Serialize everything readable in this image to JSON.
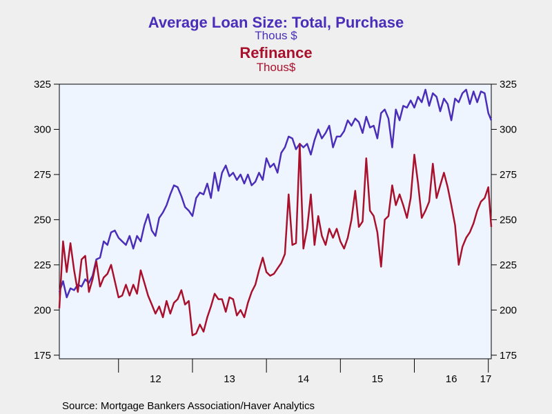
{
  "chart_data": {
    "type": "line",
    "title": "Average Loan Size: Total, Purchase",
    "title_units": "Thous $",
    "subtitle": "Refinance",
    "subtitle_units": "Thous$",
    "source": "Source:  Mortgage Bankers Association/Haver Analytics",
    "x_tick_labels": [
      "12",
      "13",
      "14",
      "15",
      "16",
      "17"
    ],
    "x_range": [
      2011.2,
      2017.04
    ],
    "y_left_ticks": [
      "325",
      "300",
      "275",
      "250",
      "225",
      "200",
      "175"
    ],
    "y_right_ticks": [
      "325",
      "300",
      "275",
      "250",
      "225",
      "200",
      "175"
    ],
    "ylim": [
      173,
      325
    ],
    "grid": false,
    "series": [
      {
        "name": "Average Loan Size: Total, Purchase",
        "color": "#4a2db8",
        "x": [
          2011.2,
          2011.25,
          2011.3,
          2011.35,
          2011.4,
          2011.45,
          2011.5,
          2011.55,
          2011.6,
          2011.65,
          2011.7,
          2011.75,
          2011.8,
          2011.85,
          2011.9,
          2011.95,
          2012.0,
          2012.05,
          2012.1,
          2012.15,
          2012.2,
          2012.25,
          2012.3,
          2012.35,
          2012.4,
          2012.45,
          2012.5,
          2012.55,
          2012.6,
          2012.65,
          2012.7,
          2012.75,
          2012.8,
          2012.85,
          2012.9,
          2012.95,
          2013.0,
          2013.05,
          2013.1,
          2013.15,
          2013.2,
          2013.25,
          2013.3,
          2013.35,
          2013.4,
          2013.45,
          2013.5,
          2013.55,
          2013.6,
          2013.65,
          2013.7,
          2013.75,
          2013.8,
          2013.85,
          2013.9,
          2013.95,
          2014.0,
          2014.05,
          2014.1,
          2014.15,
          2014.2,
          2014.25,
          2014.3,
          2014.35,
          2014.4,
          2014.45,
          2014.5,
          2014.55,
          2014.6,
          2014.65,
          2014.7,
          2014.75,
          2014.8,
          2014.85,
          2014.9,
          2014.95,
          2015.0,
          2015.05,
          2015.1,
          2015.15,
          2015.2,
          2015.25,
          2015.3,
          2015.35,
          2015.4,
          2015.45,
          2015.5,
          2015.55,
          2015.6,
          2015.65,
          2015.7,
          2015.75,
          2015.8,
          2015.85,
          2015.9,
          2015.95,
          2016.0,
          2016.05,
          2016.1,
          2016.15,
          2016.2,
          2016.25,
          2016.3,
          2016.35,
          2016.4,
          2016.45,
          2016.5,
          2016.55,
          2016.6,
          2016.65,
          2016.7,
          2016.75,
          2016.8,
          2016.85,
          2016.9,
          2016.95,
          2017.0,
          2017.04
        ],
        "values": [
          210,
          216,
          207,
          212,
          211,
          214,
          213,
          217,
          215,
          219,
          228,
          229,
          238,
          236,
          243,
          244,
          240,
          238,
          236,
          241,
          234,
          241,
          238,
          247,
          253,
          244,
          241,
          251,
          254,
          258,
          264,
          269,
          268,
          263,
          257,
          255,
          252,
          262,
          265,
          264,
          270,
          262,
          276,
          266,
          276,
          280,
          274,
          276,
          272,
          275,
          270,
          275,
          269,
          271,
          276,
          272,
          284,
          279,
          281,
          276,
          287,
          290,
          296,
          295,
          289,
          292,
          290,
          292,
          286,
          294,
          300,
          295,
          298,
          302,
          290,
          296,
          296,
          299,
          305,
          302,
          306,
          304,
          298,
          307,
          301,
          302,
          295,
          309,
          311,
          306,
          290,
          311,
          305,
          313,
          312,
          316,
          312,
          318,
          315,
          322,
          313,
          320,
          318,
          310,
          317,
          314,
          305,
          317,
          315,
          320,
          322,
          314,
          321,
          315,
          321,
          320,
          309,
          305
        ]
      },
      {
        "name": "Refinance",
        "color": "#a8102c",
        "x": [
          2011.2,
          2011.25,
          2011.3,
          2011.35,
          2011.4,
          2011.45,
          2011.5,
          2011.55,
          2011.6,
          2011.65,
          2011.7,
          2011.75,
          2011.8,
          2011.85,
          2011.9,
          2011.95,
          2012.0,
          2012.05,
          2012.1,
          2012.15,
          2012.2,
          2012.25,
          2012.3,
          2012.35,
          2012.4,
          2012.45,
          2012.5,
          2012.55,
          2012.6,
          2012.65,
          2012.7,
          2012.75,
          2012.8,
          2012.85,
          2012.9,
          2012.95,
          2013.0,
          2013.05,
          2013.1,
          2013.15,
          2013.2,
          2013.25,
          2013.3,
          2013.35,
          2013.4,
          2013.45,
          2013.5,
          2013.55,
          2013.6,
          2013.65,
          2013.7,
          2013.75,
          2013.8,
          2013.85,
          2013.9,
          2013.95,
          2014.0,
          2014.05,
          2014.1,
          2014.15,
          2014.2,
          2014.25,
          2014.3,
          2014.35,
          2014.4,
          2014.45,
          2014.5,
          2014.55,
          2014.6,
          2014.65,
          2014.7,
          2014.75,
          2014.8,
          2014.85,
          2014.9,
          2014.95,
          2015.0,
          2015.05,
          2015.1,
          2015.15,
          2015.2,
          2015.25,
          2015.3,
          2015.35,
          2015.4,
          2015.45,
          2015.5,
          2015.55,
          2015.6,
          2015.65,
          2015.7,
          2015.75,
          2015.8,
          2015.85,
          2015.9,
          2015.95,
          2016.0,
          2016.05,
          2016.1,
          2016.15,
          2016.2,
          2016.25,
          2016.3,
          2016.35,
          2016.4,
          2016.45,
          2016.5,
          2016.55,
          2016.6,
          2016.65,
          2016.7,
          2016.75,
          2016.8,
          2016.85,
          2016.9,
          2016.95,
          2017.0,
          2017.04
        ],
        "values": [
          201,
          238,
          221,
          237,
          222,
          210,
          228,
          230,
          210,
          217,
          227,
          213,
          218,
          220,
          225,
          216,
          207,
          208,
          214,
          208,
          214,
          209,
          222,
          215,
          208,
          203,
          198,
          202,
          196,
          205,
          198,
          204,
          206,
          211,
          203,
          205,
          186,
          187,
          192,
          188,
          196,
          202,
          209,
          206,
          206,
          199,
          207,
          206,
          197,
          200,
          196,
          204,
          210,
          214,
          222,
          229,
          221,
          219,
          220,
          223,
          226,
          231,
          264,
          236,
          237,
          292,
          234,
          245,
          264,
          236,
          252,
          241,
          236,
          245,
          240,
          245,
          238,
          234,
          240,
          250,
          266,
          246,
          249,
          284,
          255,
          252,
          243,
          224,
          250,
          252,
          269,
          258,
          264,
          258,
          251,
          262,
          286,
          270,
          251,
          255,
          260,
          281,
          262,
          269,
          276,
          268,
          258,
          247,
          225,
          235,
          240,
          243,
          248,
          255,
          260,
          262,
          268,
          246
        ]
      }
    ]
  }
}
